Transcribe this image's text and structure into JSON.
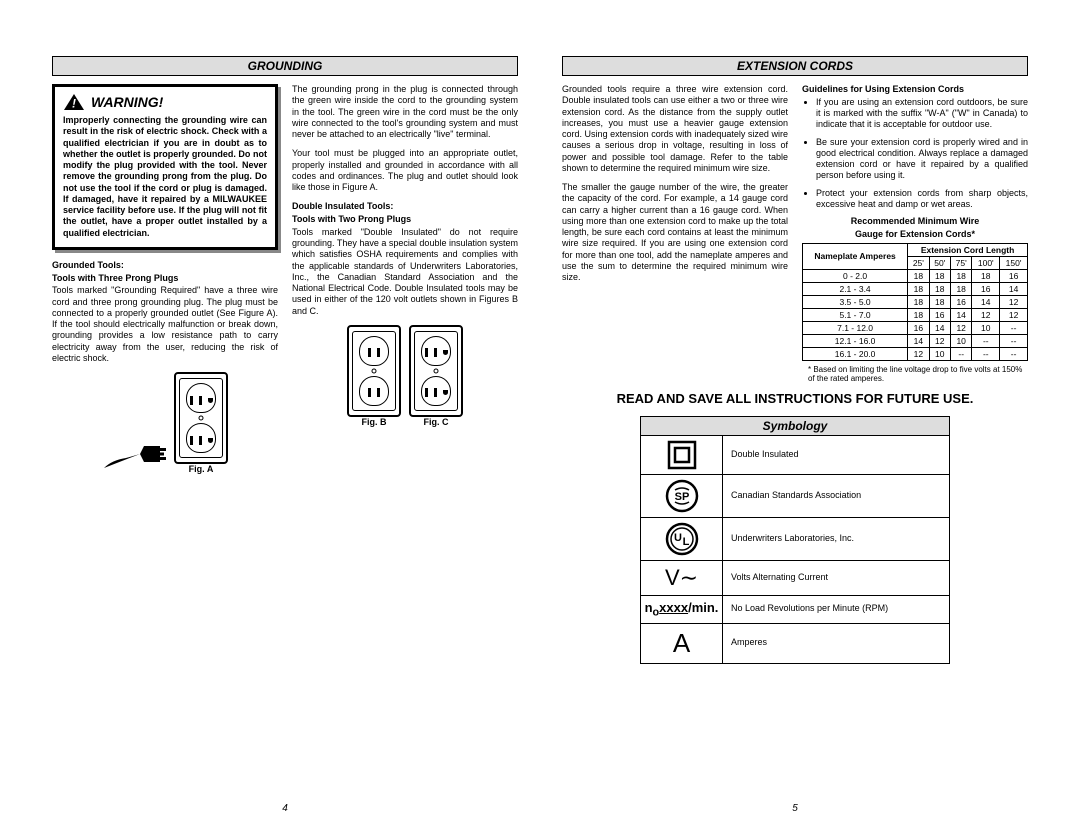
{
  "page_left": {
    "number": "4",
    "header_grounding": "GROUNDING",
    "warning_label": "WARNING!",
    "warning_text": "Improperly connecting the grounding wire can result in the risk of electric shock. Check with a qualified electrician if you are in doubt as to whether the outlet is properly grounded. Do not modify the plug provided with the tool. Never remove the grounding prong from the plug. Do not use the tool if the cord or plug is damaged. If damaged, have it repaired by a MILWAUKEE service facility before use. If the plug will not fit the outlet, have a proper outlet installed by a qualified electrician.",
    "grounded_title1": "Grounded Tools:",
    "grounded_title2": "Tools with Three Prong Plugs",
    "grounded_body": "Tools marked \"Grounding Required\" have a three wire cord and three prong grounding plug. The plug must be connected to a properly grounded outlet (See Figure A). If the tool should electrically malfunction or break down, grounding provides a low resistance path to carry electricity away from the user, reducing the risk of electric shock.",
    "col2_p1": "The grounding prong in the plug is connected through the green wire inside the cord to the grounding system in the tool. The green wire in the cord must be the only wire connected to the tool's grounding system and must never be attached to an electrically \"live\" terminal.",
    "col2_p2": "Your tool must be plugged into an appropriate outlet, properly installed and grounded in accordance with all codes and ordinances. The plug and outlet should look like those in Figure A.",
    "dbl_title1": "Double Insulated Tools:",
    "dbl_title2": "Tools with Two Prong Plugs",
    "dbl_body": "Tools marked \"Double Insulated\" do not require grounding. They have a special double insulation system which satisfies OSHA requirements and complies with the applicable standards of Underwriters Laboratories, Inc., the Canadian Standard Association and the National Electrical Code. Double Insulated tools may be used in either of the 120 volt outlets shown in Figures B and C.",
    "figA": "Fig. A",
    "figB": "Fig. B",
    "figC": "Fig. C"
  },
  "page_right": {
    "number": "5",
    "header_ext": "EXTENSION CORDS",
    "ext_p1": "Grounded tools require a three wire extension cord. Double insulated tools can use either a two or three wire extension cord. As the distance from the supply outlet increases, you must use a heavier gauge extension cord. Using extension cords with inadequately sized wire causes a serious drop in voltage, resulting in loss of power and possible tool damage. Refer to the table shown to determine the required minimum wire size.",
    "ext_p2": "The smaller the gauge number of the wire, the greater the capacity of the cord. For example, a 14 gauge cord can carry a higher current than a 16 gauge cord. When using more than one extension cord to make up the total length, be sure each cord contains at least the minimum wire size required. If you are using one extension cord for more than one tool, add the nameplate amperes and use the sum to determine the required minimum wire size.",
    "guidelines_title": "Guidelines for Using Extension Cords",
    "bullet1": "If you are using an extension cord outdoors, be sure it is marked with the suffix \"W-A\" (\"W\" in Canada) to indicate that it is acceptable for outdoor use.",
    "bullet2": "Be sure your extension cord is properly wired and in good electrical condition. Always replace a damaged extension cord or have it repaired by a qualified person before using it.",
    "bullet3": "Protect your extension cords from sharp objects, excessive heat and damp or wet areas.",
    "rec_title1": "Recommended Minimum Wire",
    "rec_title2": "Gauge for Extension Cords*",
    "table": {
      "h_nameplate": "Nameplate Amperes",
      "h_length": "Extension Cord Length",
      "lengths": [
        "25'",
        "50'",
        "75'",
        "100'",
        "150'"
      ],
      "rows": [
        {
          "amp": "0 - 2.0",
          "g": [
            "18",
            "18",
            "18",
            "18",
            "16"
          ]
        },
        {
          "amp": "2.1 - 3.4",
          "g": [
            "18",
            "18",
            "18",
            "16",
            "14"
          ]
        },
        {
          "amp": "3.5 - 5.0",
          "g": [
            "18",
            "18",
            "16",
            "14",
            "12"
          ]
        },
        {
          "amp": "5.1 - 7.0",
          "g": [
            "18",
            "16",
            "14",
            "12",
            "12"
          ]
        },
        {
          "amp": "7.1 - 12.0",
          "g": [
            "16",
            "14",
            "12",
            "10",
            "--"
          ]
        },
        {
          "amp": "12.1 - 16.0",
          "g": [
            "14",
            "12",
            "10",
            "--",
            "--"
          ]
        },
        {
          "amp": "16.1 - 20.0",
          "g": [
            "12",
            "10",
            "--",
            "--",
            "--"
          ]
        }
      ],
      "note": "* Based on limiting the line voltage drop to five volts at 150% of the rated amperes."
    },
    "read_save": "READ AND SAVE ALL INSTRUCTIONS FOR FUTURE USE.",
    "symbology_header": "Symbology",
    "symbols": [
      {
        "label": "Double Insulated"
      },
      {
        "label": "Canadian Standards Association"
      },
      {
        "label": "Underwriters Laboratories, Inc."
      },
      {
        "label": "Volts Alternating Current"
      },
      {
        "label": "No Load Revolutions per Minute (RPM)"
      },
      {
        "label": "Amperes"
      }
    ]
  },
  "colors": {
    "header_bg": "#dddddd",
    "border": "#000000"
  }
}
